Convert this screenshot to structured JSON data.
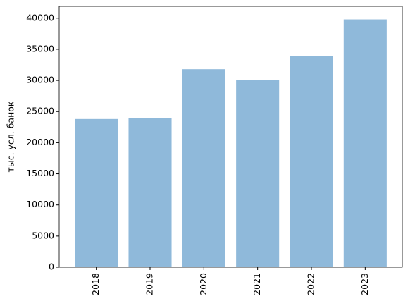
{
  "chart_data": {
    "type": "bar",
    "y_label": "тыс. усл. банок",
    "categories": [
      "2018",
      "2019",
      "2020",
      "2021",
      "2022",
      "2023"
    ],
    "values": [
      23800,
      24000,
      31800,
      30100,
      33900,
      39800
    ],
    "color": "#8fb9da",
    "ylim": [
      0,
      41900
    ],
    "yticks": [
      0,
      5000,
      10000,
      15000,
      20000,
      25000,
      30000,
      35000,
      40000
    ],
    "grid": false
  }
}
